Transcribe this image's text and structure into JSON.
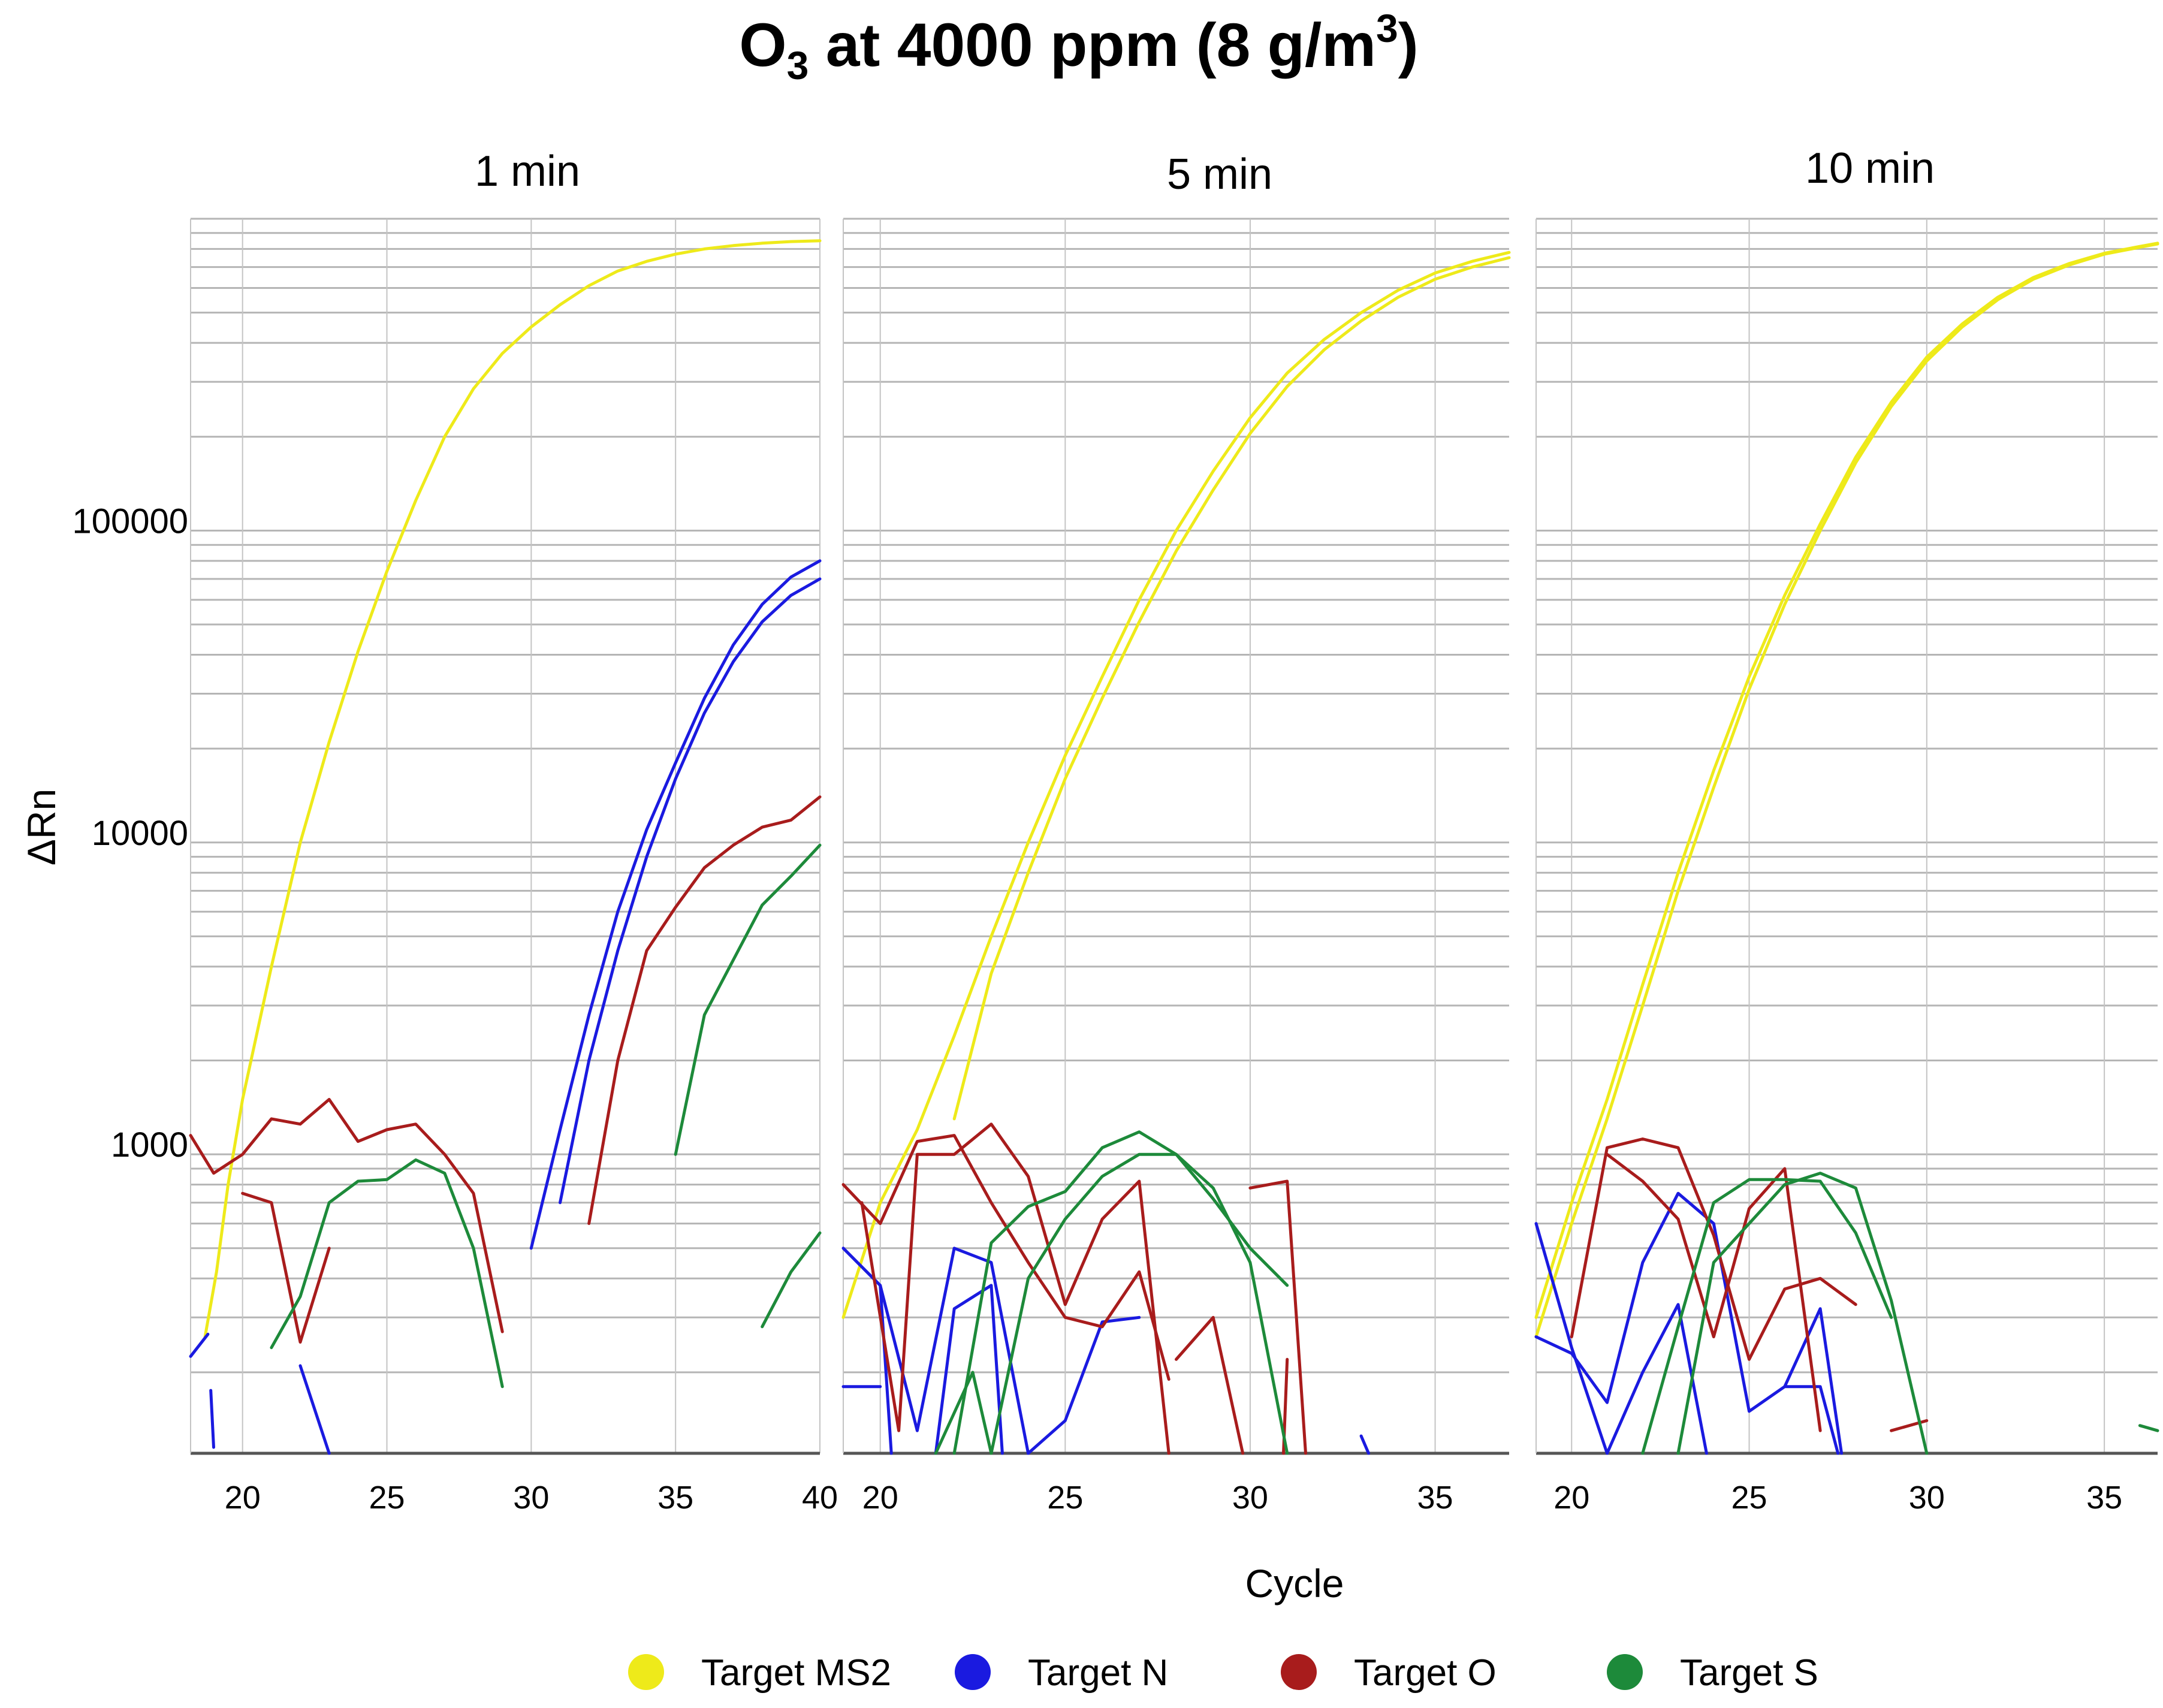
{
  "chart_data": {
    "type": "line",
    "title": {
      "main": "O",
      "sub": "3",
      "rest": " at 4000 ppm (8 g/m",
      "sup": "3",
      "end": ")"
    },
    "xlabel": "Cycle",
    "ylabel": "ΔRn",
    "yscale": "log",
    "yticks": [
      {
        "value": 100000,
        "label": "100000"
      },
      {
        "value": 10000,
        "label": "10000"
      },
      {
        "value": 1000,
        "label": "1000"
      }
    ],
    "legend": [
      {
        "name": "Target MS2",
        "color": "#eeea1a"
      },
      {
        "name": "Target N",
        "color": "#1a1ae0"
      },
      {
        "name": "Target O",
        "color": "#a81c1c"
      },
      {
        "name": "Target S",
        "color": "#1d8a3a"
      }
    ],
    "panels": [
      {
        "title": "1 min",
        "xlim": [
          18.2,
          40
        ],
        "ylim": [
          110,
          1000000
        ],
        "xticks": [
          20,
          25,
          30,
          35,
          40
        ],
        "series": [
          {
            "target": "Target MS2",
            "x": [
              18.7,
              19.1,
              19.5,
              20.0,
              21.0,
              22.0,
              23.0,
              24.0,
              25.0,
              26.0,
              27.0,
              28.0,
              29.0,
              30.0,
              31.0,
              32.0,
              33.0,
              34.0,
              35.0,
              36.0,
              37.0,
              38.0,
              39.0,
              40.0
            ],
            "y": [
              260,
              420,
              800,
              1500,
              4000,
              10000,
              21000,
              41000,
              74000,
              125000,
              200000,
              285000,
              370000,
              450000,
              530000,
              610000,
              680000,
              730000,
              770000,
              800000,
              820000,
              835000,
              845000,
              850000
            ]
          },
          {
            "target": "Target N",
            "x": [
              18.2,
              18.8
            ],
            "y": [
              225,
              265
            ]
          },
          {
            "target": "Target N",
            "x": [
              18.9,
              19.0
            ],
            "y": [
              175,
              115
            ]
          },
          {
            "target": "Target N",
            "x": [
              22.0,
              23.0
            ],
            "y": [
              210,
              110
            ]
          },
          {
            "target": "Target N",
            "x": [
              30.0,
              31.0,
              32.0,
              33.0,
              34.0,
              35.0,
              36.0,
              37.0,
              38.0,
              39.0,
              40.0
            ],
            "y": [
              500,
              1200,
              2800,
              6000,
              11000,
              18000,
              29000,
              43000,
              58000,
              71000,
              80000
            ]
          },
          {
            "target": "Target N",
            "x": [
              31.0,
              32.0,
              33.0,
              34.0,
              35.0,
              36.0,
              37.0,
              38.0,
              39.0,
              40.0
            ],
            "y": [
              700,
              2000,
              4500,
              9000,
              16000,
              26000,
              38000,
              51000,
              62000,
              70000
            ]
          },
          {
            "target": "Target O",
            "x": [
              18.2,
              19.0,
              20.0,
              21.0,
              22.0,
              23.0,
              24.0,
              25.0,
              26.0,
              27.0,
              28.0,
              29.0
            ],
            "y": [
              1150,
              870,
              1000,
              1300,
              1250,
              1500,
              1100,
              1200,
              1250,
              1000,
              750,
              270
            ]
          },
          {
            "target": "Target O",
            "x": [
              20.0,
              21.0,
              22.0,
              23.0
            ],
            "y": [
              750,
              700,
              250,
              500
            ]
          },
          {
            "target": "Target O",
            "x": [
              32.0,
              33.0,
              34.0,
              35.0,
              36.0,
              37.0,
              38.0,
              39.0,
              40.0
            ],
            "y": [
              600,
              2000,
              4500,
              6200,
              8300,
              9800,
              11200,
              11800,
              14000
            ]
          },
          {
            "target": "Target S",
            "x": [
              21.0,
              22.0,
              23.0,
              24.0,
              25.0,
              26.0,
              27.0,
              28.0,
              29.0
            ],
            "y": [
              240,
              350,
              700,
              820,
              830,
              960,
              870,
              500,
              180
            ]
          },
          {
            "target": "Target S",
            "x": [
              35.0,
              36.0,
              37.0,
              38.0,
              39.0,
              40.0
            ],
            "y": [
              1000,
              2800,
              4200,
              6300,
              7800,
              9800
            ]
          },
          {
            "target": "Target S",
            "x": [
              38.0,
              39.0,
              40.0
            ],
            "y": [
              280,
              420,
              560
            ]
          }
        ]
      },
      {
        "title": "5 min",
        "xlim": [
          19.0,
          37.0
        ],
        "ylim": [
          110,
          1000000
        ],
        "xticks": [
          20,
          25,
          30,
          35
        ],
        "series": [
          {
            "target": "Target MS2",
            "x": [
              19.0,
              20.0,
              21.0,
              22.0,
              23.0,
              24.0,
              25.0,
              26.0,
              27.0,
              28.0,
              29.0,
              30.0,
              31.0,
              32.0,
              33.0,
              34.0,
              35.0,
              36.0,
              37.0
            ],
            "y": [
              300,
              700,
              1200,
              2400,
              5000,
              10000,
              19000,
              34000,
              60000,
              100000,
              155000,
              230000,
              320000,
              410000,
              500000,
              590000,
              670000,
              730000,
              780000
            ]
          },
          {
            "target": "Target MS2",
            "x": [
              22.0,
              23.0,
              24.0,
              25.0,
              26.0,
              27.0,
              28.0,
              29.0,
              30.0,
              31.0,
              32.0,
              33.0,
              34.0,
              35.0,
              36.0,
              37.0
            ],
            "y": [
              1300,
              3800,
              8000,
              16000,
              29000,
              51000,
              86000,
              135000,
              205000,
              290000,
              380000,
              470000,
              560000,
              640000,
              700000,
              750000
            ]
          },
          {
            "target": "Target N",
            "x": [
              19.0,
              20.0
            ],
            "y": [
              180,
              180
            ]
          },
          {
            "target": "Target N",
            "x": [
              19.0,
              20.0,
              20.3
            ],
            "y": [
              500,
              380,
              110
            ]
          },
          {
            "target": "Target N",
            "x": [
              20.0,
              21.0,
              22.0,
              23.0,
              24.0
            ],
            "y": [
              380,
              130,
              500,
              450,
              110
            ]
          },
          {
            "target": "Target N",
            "x": [
              21.5,
              22.0,
              23.0,
              23.3
            ],
            "y": [
              110,
              320,
              380,
              110
            ]
          },
          {
            "target": "Target N",
            "x": [
              24.0,
              25.0,
              26.0,
              27.0
            ],
            "y": [
              110,
              140,
              290,
              300
            ]
          },
          {
            "target": "Target N",
            "x": [
              33.0,
              33.2
            ],
            "y": [
              125,
              110
            ]
          },
          {
            "target": "Target O",
            "x": [
              19.0,
              20.0,
              21.0,
              22.0,
              23.0,
              24.0,
              25.0,
              26.0,
              27.0,
              27.8
            ],
            "y": [
              800,
              600,
              1100,
              1150,
              700,
              450,
              300,
              280,
              420,
              190
            ]
          },
          {
            "target": "Target O",
            "x": [
              19.5,
              20.5,
              21.0,
              22.0,
              23.0,
              24.0,
              25.0,
              26.0,
              27.0,
              27.8
            ],
            "y": [
              700,
              130,
              1000,
              1000,
              1250,
              850,
              330,
              620,
              820,
              110
            ]
          },
          {
            "target": "Target O",
            "x": [
              28.0,
              29.0,
              29.8
            ],
            "y": [
              220,
              300,
              110
            ]
          },
          {
            "target": "Target O",
            "x": [
              30.0,
              31.0,
              31.5
            ],
            "y": [
              780,
              820,
              110
            ]
          },
          {
            "target": "Target O",
            "x": [
              31.0,
              30.9
            ],
            "y": [
              220,
              110
            ]
          },
          {
            "target": "Target S",
            "x": [
              22.0,
              23.0,
              24.0,
              25.0,
              26.0,
              27.0,
              28.0,
              29.0,
              30.0,
              31.0
            ],
            "y": [
              110,
              520,
              680,
              760,
              1050,
              1180,
              1000,
              720,
              500,
              380
            ]
          },
          {
            "target": "Target S",
            "x": [
              23.0,
              24.0,
              25.0,
              26.0,
              27.0,
              28.0,
              29.0,
              30.0,
              31.0
            ],
            "y": [
              110,
              400,
              620,
              850,
              1000,
              1000,
              780,
              450,
              110
            ]
          },
          {
            "target": "Target S",
            "x": [
              21.5,
              22.5,
              23.0
            ],
            "y": [
              110,
              200,
              110
            ]
          }
        ]
      },
      {
        "title": "10 min",
        "xlim": [
          19.0,
          36.5
        ],
        "ylim": [
          110,
          1000000
        ],
        "xticks": [
          20,
          25,
          30,
          35
        ],
        "series": [
          {
            "target": "Target MS2",
            "x": [
              19.0,
              20.0,
              21.0,
              22.0,
              23.0,
              24.0,
              25.0,
              26.0,
              27.0,
              28.0,
              29.0,
              30.0,
              31.0,
              32.0,
              33.0,
              34.0,
              35.0,
              36.0,
              36.5
            ],
            "y": [
              260,
              600,
              1300,
              3000,
              7000,
              15000,
              31000,
              58000,
              100000,
              165000,
              250000,
              350000,
              450000,
              550000,
              640000,
              710000,
              770000,
              810000,
              830000
            ]
          },
          {
            "target": "Target MS2",
            "x": [
              19.0,
              20.0,
              21.0,
              22.0,
              23.0,
              24.0,
              25.0,
              26.0,
              27.0,
              28.0,
              29.0,
              30.0,
              31.0,
              32.0,
              33.0,
              34.0,
              35.0,
              36.0,
              36.5
            ],
            "y": [
              300,
              700,
              1500,
              3500,
              8000,
              17000,
              34000,
              62000,
              105000,
              172000,
              258000,
              360000,
              460000,
              560000,
              648000,
              718000,
              775000,
              815000,
              835000
            ]
          },
          {
            "target": "Target N",
            "x": [
              19.0,
              20.0,
              21.0,
              22.0,
              23.0,
              24.0,
              25.0,
              26.0,
              27.0,
              27.6
            ],
            "y": [
              260,
              230,
              160,
              450,
              750,
              600,
              150,
              180,
              320,
              110
            ]
          },
          {
            "target": "Target N",
            "x": [
              19.0,
              20.0,
              21.0,
              22.0,
              23.0,
              23.8
            ],
            "y": [
              600,
              240,
              110,
              200,
              330,
              110
            ]
          },
          {
            "target": "Target N",
            "x": [
              26.0,
              27.0,
              27.5
            ],
            "y": [
              180,
              180,
              110
            ]
          },
          {
            "target": "Target O",
            "x": [
              20.0,
              21.0,
              22.0,
              23.0,
              24.0,
              25.0,
              26.0,
              27.0,
              28.0
            ],
            "y": [
              260,
              1050,
              1120,
              1050,
              550,
              220,
              370,
              400,
              330
            ]
          },
          {
            "target": "Target O",
            "x": [
              21.0,
              22.0,
              23.0,
              24.0,
              25.0,
              26.0,
              27.0
            ],
            "y": [
              1000,
              820,
              620,
              260,
              670,
              900,
              130
            ]
          },
          {
            "target": "Target O",
            "x": [
              29.0,
              30.0
            ],
            "y": [
              130,
              140
            ]
          },
          {
            "target": "Target S",
            "x": [
              22.0,
              23.0,
              24.0,
              25.0,
              26.0,
              27.0,
              28.0,
              29.0
            ],
            "y": [
              110,
              280,
              700,
              830,
              830,
              820,
              560,
              300
            ]
          },
          {
            "target": "Target S",
            "x": [
              23.0,
              24.0,
              25.0,
              26.0,
              27.0,
              28.0,
              29.0,
              30.0
            ],
            "y": [
              110,
              450,
              600,
              800,
              870,
              780,
              340,
              110
            ]
          },
          {
            "target": "Target S",
            "x": [
              36.0,
              36.5
            ],
            "y": [
              135,
              130
            ]
          }
        ]
      }
    ]
  }
}
